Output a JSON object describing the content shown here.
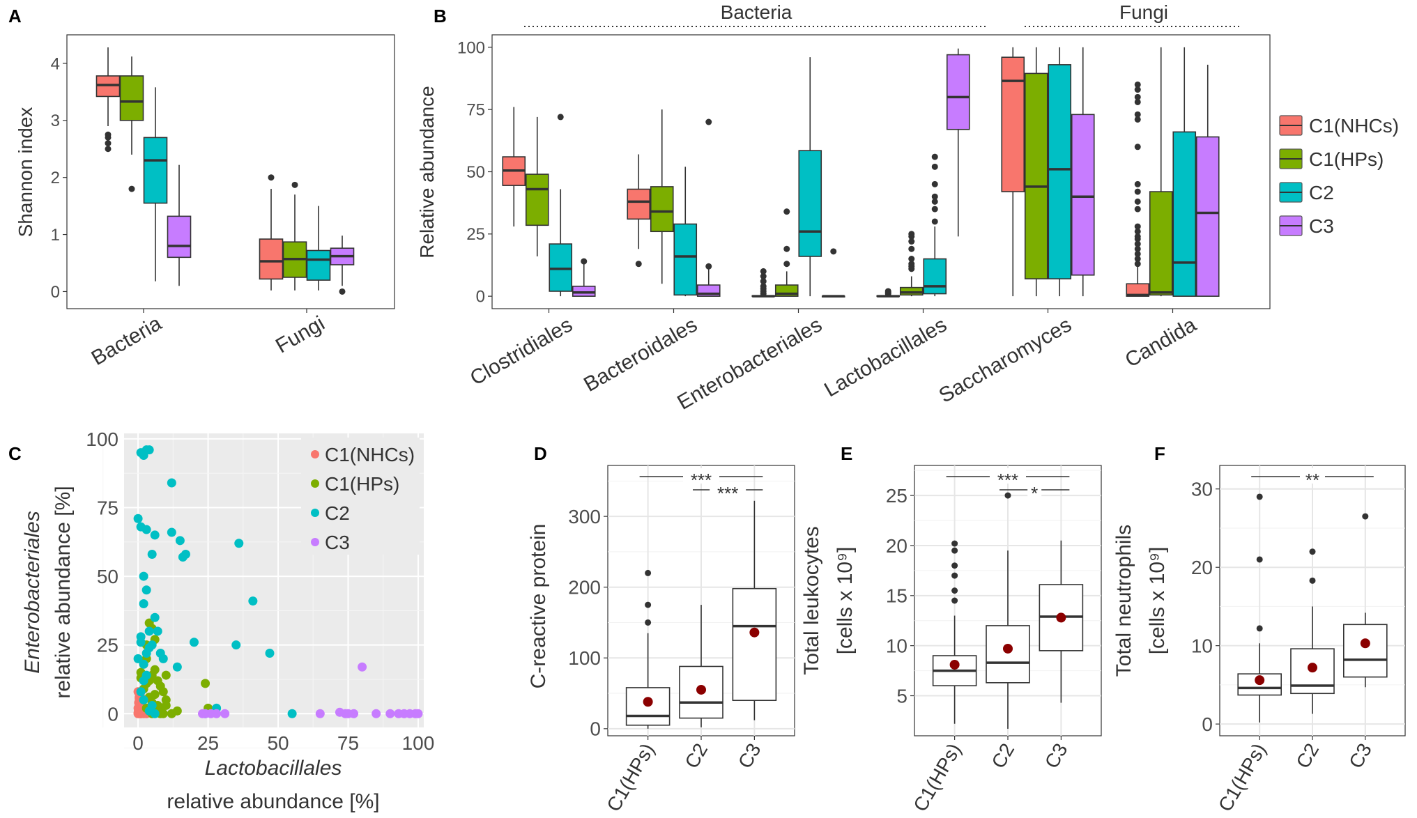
{
  "colors": {
    "C1NHC": "#F8766D",
    "C1HP": "#7CAE00",
    "C2": "#00BFC4",
    "C3": "#C77CFF",
    "outlier": "#333333",
    "mean": "#8B0000",
    "panel_bg": "#EBEBEB"
  },
  "legend": {
    "labels": [
      "C1(NHCs)",
      "C1(HPs)",
      "C2",
      "C3"
    ]
  },
  "chart_data": [
    {
      "id": "A",
      "label": "A",
      "type": "box",
      "ylabel": "Shannon index",
      "ylim": [
        -0.3,
        4.5
      ],
      "yticks": [
        0,
        1,
        2,
        3,
        4
      ],
      "categories": [
        "Bacteria",
        "Fungi"
      ],
      "series": [
        "C1(NHCs)",
        "C1(HPs)",
        "C2",
        "C3"
      ],
      "boxes": [
        [
          {
            "min": 2.9,
            "q1": 3.42,
            "med": 3.62,
            "q3": 3.78,
            "max": 4.28,
            "out": [
              2.5,
              2.6,
              2.7,
              2.75
            ]
          },
          {
            "min": 2.4,
            "q1": 3.0,
            "med": 3.33,
            "q3": 3.78,
            "max": 4.12,
            "out": [
              1.8
            ]
          },
          {
            "min": 0.18,
            "q1": 1.55,
            "med": 2.3,
            "q3": 2.7,
            "max": 3.58,
            "out": []
          },
          {
            "min": 0.1,
            "q1": 0.6,
            "med": 0.8,
            "q3": 1.32,
            "max": 2.22,
            "out": []
          }
        ],
        [
          {
            "min": 0.02,
            "q1": 0.22,
            "med": 0.53,
            "q3": 0.92,
            "max": 1.8,
            "out": [
              2.0
            ]
          },
          {
            "min": 0.02,
            "q1": 0.25,
            "med": 0.57,
            "q3": 0.87,
            "max": 1.7,
            "out": [
              1.87
            ]
          },
          {
            "min": 0.02,
            "q1": 0.2,
            "med": 0.56,
            "q3": 0.72,
            "max": 1.5,
            "out": []
          },
          {
            "min": 0.1,
            "q1": 0.47,
            "med": 0.62,
            "q3": 0.76,
            "max": 0.98,
            "out": [
              0.0
            ]
          }
        ]
      ]
    },
    {
      "id": "B",
      "label": "B",
      "type": "box",
      "ylabel": "Relative abundance",
      "ylim": [
        -5,
        105
      ],
      "yticks": [
        0,
        25,
        50,
        75,
        100
      ],
      "groups": [
        {
          "label": "Bacteria",
          "from": 0,
          "to": 3
        },
        {
          "label": "Fungi",
          "from": 4,
          "to": 5
        }
      ],
      "categories": [
        "Clostridiales",
        "Bacteroidales",
        "Enterobacteriales",
        "Lactobacillales",
        "Saccharomyces",
        "Candida"
      ],
      "series": [
        "C1(NHCs)",
        "C1(HPs)",
        "C2",
        "C3"
      ],
      "boxes": [
        [
          {
            "min": 28,
            "q1": 44.5,
            "med": 50.5,
            "q3": 56,
            "max": 76,
            "out": []
          },
          {
            "min": 16,
            "q1": 28.5,
            "med": 43,
            "q3": 49,
            "max": 72,
            "out": []
          },
          {
            "min": 0,
            "q1": 2,
            "med": 11,
            "q3": 21,
            "max": 43,
            "out": [
              72
            ]
          },
          {
            "min": 0,
            "q1": 0,
            "med": 1.5,
            "q3": 4,
            "max": 13,
            "out": [
              14
            ]
          }
        ],
        [
          {
            "min": 19,
            "q1": 31,
            "med": 38,
            "q3": 43,
            "max": 57,
            "out": [
              13
            ]
          },
          {
            "min": 5,
            "q1": 26,
            "med": 34,
            "q3": 44,
            "max": 75,
            "out": []
          },
          {
            "min": 0,
            "q1": 0.5,
            "med": 16,
            "q3": 29,
            "max": 52,
            "out": []
          },
          {
            "min": 0,
            "q1": 0,
            "med": 1,
            "q3": 4.5,
            "max": 11,
            "out": [
              12,
              70
            ]
          }
        ],
        [
          {
            "min": 0,
            "q1": 0,
            "med": 0,
            "q3": 0.2,
            "max": 0.5,
            "out": [
              1,
              2,
              3,
              4,
              6,
              8,
              10
            ]
          },
          {
            "min": 0,
            "q1": 0,
            "med": 1,
            "q3": 4.5,
            "max": 10,
            "out": [
              13,
              19,
              34
            ]
          },
          {
            "min": 0,
            "q1": 16,
            "med": 26,
            "q3": 58.5,
            "max": 96,
            "out": []
          },
          {
            "min": 0,
            "q1": 0,
            "med": 0,
            "q3": 0,
            "max": 0.3,
            "out": [
              18
            ]
          }
        ],
        [
          {
            "min": 0,
            "q1": 0,
            "med": 0,
            "q3": 0.2,
            "max": 0.5,
            "out": [
              1,
              1.5,
              2
            ]
          },
          {
            "min": 0,
            "q1": 0.5,
            "med": 1.5,
            "q3": 3.5,
            "max": 8,
            "out": [
              11,
              12,
              13,
              15,
              19,
              22,
              24,
              25
            ]
          },
          {
            "min": 0,
            "q1": 1,
            "med": 4,
            "q3": 15,
            "max": 28,
            "out": [
              30,
              35,
              38,
              40,
              45,
              52,
              56
            ]
          },
          {
            "min": 24,
            "q1": 67,
            "med": 80,
            "q3": 97,
            "max": 99.5,
            "out": []
          }
        ],
        [
          {
            "min": 0,
            "q1": 42,
            "med": 86.5,
            "q3": 96,
            "max": 100,
            "out": []
          },
          {
            "min": 0,
            "q1": 7,
            "med": 44,
            "q3": 89.5,
            "max": 100,
            "out": []
          },
          {
            "min": 0,
            "q1": 7,
            "med": 51,
            "q3": 93,
            "max": 100,
            "out": []
          },
          {
            "min": 0,
            "q1": 8.5,
            "med": 40,
            "q3": 73,
            "max": 100,
            "out": []
          }
        ],
        [
          {
            "min": 0,
            "q1": 0,
            "med": 0.5,
            "q3": 5,
            "max": 12,
            "out": [
              13,
              15,
              17,
              19,
              21,
              23,
              24,
              26,
              28,
              35,
              38,
              42,
              45,
              60,
              71,
              73,
              78,
              80,
              83,
              85
            ]
          },
          {
            "min": 0,
            "q1": 0.5,
            "med": 1.5,
            "q3": 42,
            "max": 100,
            "out": []
          },
          {
            "min": 0,
            "q1": 0,
            "med": 13.5,
            "q3": 66,
            "max": 100,
            "out": []
          },
          {
            "min": 0,
            "q1": 0,
            "med": 33.5,
            "q3": 64,
            "max": 93,
            "out": []
          }
        ]
      ]
    },
    {
      "id": "C",
      "label": "C",
      "type": "scatter",
      "xlabel_italic": "Lactobacillales",
      "xlabel_line2": "relative abundance [%]",
      "ylabel_italic": "Enterobacteriales",
      "ylabel_line2": "relative abundance [%]",
      "xlim": [
        -5,
        102
      ],
      "ylim": [
        -5,
        102
      ],
      "xticks": [
        0,
        25,
        50,
        75,
        100
      ],
      "yticks": [
        0,
        25,
        50,
        75,
        100
      ],
      "series": [
        {
          "name": "C1(NHCs)",
          "x": [
            0,
            0.3,
            0.5,
            0.8,
            1,
            1.2,
            1.5,
            2,
            2.5,
            3,
            0,
            0.5,
            1,
            1.5,
            2,
            0.2,
            0.7,
            1.1,
            0.4,
            1.8,
            0.6,
            2.2,
            0.9,
            1.3,
            0,
            0.1,
            0.3,
            0.6,
            1.6,
            2.8,
            0.2,
            1,
            0.4,
            0.8,
            0,
            1.4
          ],
          "y": [
            0,
            0,
            0.5,
            0,
            1,
            0,
            0.2,
            0,
            0.5,
            0,
            2,
            3,
            1.5,
            2.5,
            1,
            4,
            5,
            3,
            6,
            1.5,
            7,
            2,
            4.5,
            3.5,
            0.3,
            1,
            1.2,
            0.8,
            0.5,
            1,
            2,
            0,
            5.5,
            6.5,
            8,
            0.4
          ]
        },
        {
          "name": "C1(HPs)",
          "x": [
            4,
            5,
            6,
            3,
            7,
            8,
            9,
            10,
            6,
            5,
            4,
            3,
            2,
            1,
            2,
            4,
            5,
            7,
            8,
            9,
            10,
            12,
            14,
            24,
            25,
            7,
            6,
            5,
            8,
            3,
            1,
            2,
            10,
            4,
            3
          ],
          "y": [
            33,
            31,
            27,
            20,
            12,
            10,
            8,
            3,
            16,
            14,
            12,
            11,
            9,
            15,
            19,
            6,
            4,
            2,
            1,
            0,
            5,
            0,
            1,
            11,
            2,
            3,
            7,
            0,
            0,
            25,
            13,
            18,
            14,
            1,
            2
          ]
        },
        {
          "name": "C2",
          "x": [
            1,
            2,
            3,
            4,
            2,
            5,
            8,
            0,
            1,
            3,
            6,
            15,
            16,
            17,
            12,
            20,
            5,
            36,
            41,
            35,
            47,
            28,
            55,
            3,
            2,
            6,
            4,
            1,
            12,
            14,
            3,
            2,
            9,
            7,
            1,
            3,
            0,
            2,
            5,
            1,
            2,
            4,
            6,
            4,
            24
          ],
          "y": [
            95,
            94,
            96,
            96,
            50,
            58,
            22,
            71,
            68,
            67,
            65,
            63,
            57,
            58,
            66,
            26,
            25,
            62,
            41,
            25,
            22,
            2,
            0,
            45,
            40,
            35,
            30,
            28,
            84,
            17,
            22,
            18,
            20,
            30,
            26,
            14,
            20,
            12,
            3,
            8,
            5,
            1,
            0,
            24,
            0
          ]
        },
        {
          "name": "C3",
          "x": [
            23,
            24,
            26,
            28,
            31,
            65,
            72,
            74,
            75,
            77,
            80,
            85,
            90,
            93,
            95,
            97,
            99,
            100
          ],
          "y": [
            0,
            0,
            0,
            0,
            0,
            0,
            0.5,
            0,
            0,
            0,
            17,
            0,
            0,
            0,
            0,
            0,
            0,
            0
          ]
        }
      ]
    },
    {
      "id": "D",
      "label": "D",
      "type": "box",
      "ylabel": "C-reactive protein",
      "ylim": [
        -10,
        372
      ],
      "yticks": [
        0,
        100,
        200,
        300
      ],
      "categories": [
        "C1(HPs)",
        "C2",
        "C3"
      ],
      "boxes": [
        {
          "min": 0,
          "q1": 5,
          "med": 18,
          "q3": 58,
          "max": 135,
          "out": [
            150,
            175,
            220
          ],
          "mean": 38
        },
        {
          "min": 2,
          "q1": 15,
          "med": 37,
          "q3": 88,
          "max": 175,
          "out": [],
          "mean": 55
        },
        {
          "min": 12,
          "q1": 40,
          "med": 145,
          "q3": 198,
          "max": 322,
          "out": [],
          "mean": 136
        }
      ],
      "significance": [
        {
          "from": 0,
          "to": 2,
          "label": "***"
        },
        {
          "from": 1,
          "to": 2,
          "label": "***"
        }
      ]
    },
    {
      "id": "E",
      "label": "E",
      "type": "box",
      "ylabel": "Total leukocytes",
      "ylabel_line2": "[cells x 10⁹]",
      "ylim": [
        1,
        28
      ],
      "yticks": [
        5,
        10,
        15,
        20,
        25
      ],
      "categories": [
        "C1(HPs)",
        "C2",
        "C3"
      ],
      "boxes": [
        {
          "min": 2.2,
          "q1": 6,
          "med": 7.5,
          "q3": 9,
          "max": 13,
          "out": [
            14.5,
            15.5,
            17,
            18,
            19.5,
            20.2
          ],
          "mean": 8.1
        },
        {
          "min": 1.7,
          "q1": 6.3,
          "med": 8.3,
          "q3": 12,
          "max": 19.5,
          "out": [
            25
          ],
          "mean": 9.7
        },
        {
          "min": 4.3,
          "q1": 9.5,
          "med": 12.9,
          "q3": 16.1,
          "max": 20.5,
          "out": [],
          "mean": 12.8
        }
      ],
      "significance": [
        {
          "from": 0,
          "to": 2,
          "label": "***"
        },
        {
          "from": 1,
          "to": 2,
          "label": "*"
        }
      ]
    },
    {
      "id": "F",
      "label": "F",
      "type": "box",
      "ylabel": "Total neutrophils",
      "ylabel_line2": "[cells x 10⁹]",
      "ylim": [
        -1.5,
        33
      ],
      "yticks": [
        0,
        10,
        20,
        30
      ],
      "categories": [
        "C1(HPs)",
        "C2",
        "C3"
      ],
      "boxes": [
        {
          "min": 0.2,
          "q1": 3.7,
          "med": 4.6,
          "q3": 6.4,
          "max": 10.3,
          "out": [
            12.2,
            21,
            29
          ],
          "mean": 5.6
        },
        {
          "min": 1.3,
          "q1": 3.9,
          "med": 4.9,
          "q3": 9.6,
          "max": 15,
          "out": [
            18.3,
            22
          ],
          "mean": 7.2
        },
        {
          "min": 4.7,
          "q1": 6,
          "med": 8.2,
          "q3": 12.7,
          "max": 14.2,
          "out": [
            26.5
          ],
          "mean": 10.3
        }
      ],
      "significance": [
        {
          "from": 0,
          "to": 2,
          "label": "**"
        }
      ]
    }
  ]
}
